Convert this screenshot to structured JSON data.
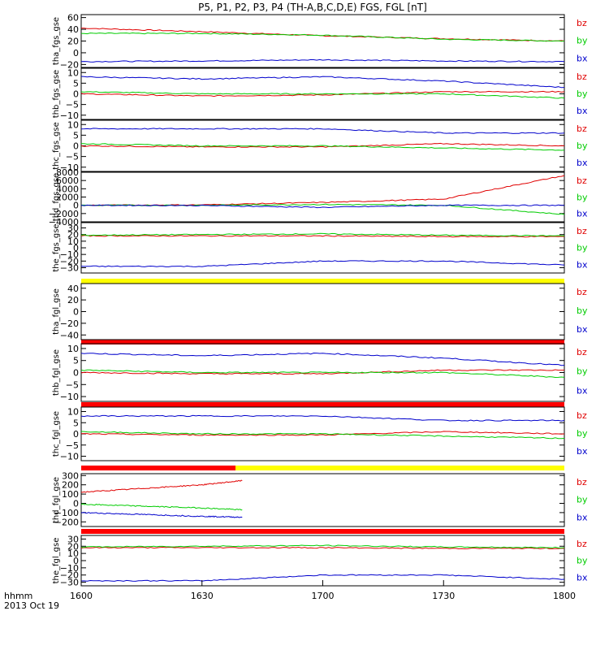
{
  "title": "P5, P1, P2, P3, P4 (TH-A,B,C,D,E) FGS, FGL [nT]",
  "footer": {
    "hhmm": "hhmm",
    "date": "2013 Oct 19"
  },
  "colors": {
    "bz": "#e00000",
    "by": "#00cc00",
    "bx": "#0000cc",
    "bar_red": "#ff0000",
    "bar_yellow": "#ffff00",
    "frame": "#000000"
  },
  "chart_data": [
    {
      "type": "line",
      "ylabel": "tha_fgs_gse",
      "xlim": [
        "1600",
        "1800"
      ],
      "ylim": [
        -25,
        65
      ],
      "yticks": [
        "60",
        "40",
        "20",
        "0",
        "−20"
      ],
      "x": [
        "1600",
        "1630",
        "1700",
        "1730",
        "1800"
      ],
      "series": [
        {
          "name": "bz",
          "values": [
            42,
            36,
            29,
            24,
            20
          ]
        },
        {
          "name": "by",
          "values": [
            33,
            33,
            30,
            23,
            20
          ]
        },
        {
          "name": "bx",
          "values": [
            -15,
            -14,
            -12,
            -14,
            -15
          ]
        }
      ]
    },
    {
      "type": "line",
      "ylabel": "thb_fgs_gse",
      "xlim": [
        "1600",
        "1800"
      ],
      "ylim": [
        -12,
        12
      ],
      "yticks": [
        "10",
        "5",
        "0",
        "−5",
        "−10"
      ],
      "x": [
        "1600",
        "1630",
        "1700",
        "1730",
        "1800"
      ],
      "series": [
        {
          "name": "bz",
          "values": [
            0,
            -1,
            -0.5,
            1,
            1
          ]
        },
        {
          "name": "by",
          "values": [
            1,
            0,
            0,
            0,
            -2
          ]
        },
        {
          "name": "bx",
          "values": [
            8,
            7,
            8,
            6,
            3
          ]
        }
      ]
    },
    {
      "type": "line",
      "ylabel": "thc_fgs_gse",
      "xlim": [
        "1600",
        "1800"
      ],
      "ylim": [
        -12,
        12
      ],
      "yticks": [
        "10",
        "5",
        "0",
        "−5",
        "−10"
      ],
      "x": [
        "1600",
        "1630",
        "1700",
        "1730",
        "1800"
      ],
      "series": [
        {
          "name": "bz",
          "values": [
            0,
            -0.5,
            -0.5,
            1,
            0
          ]
        },
        {
          "name": "by",
          "values": [
            1,
            0,
            0,
            -1,
            -2
          ]
        },
        {
          "name": "bx",
          "values": [
            8,
            8,
            8,
            6,
            6
          ]
        }
      ]
    },
    {
      "type": "line",
      "ylabel": "thd_fgs_gse",
      "xlim": [
        "1600",
        "1800"
      ],
      "ylim": [
        -4000,
        8000
      ],
      "yticks": [
        "8000",
        "6000",
        "4000",
        "2000",
        "0",
        "−2000",
        "−4000"
      ],
      "x": [
        "1600",
        "1630",
        "1700",
        "1730",
        "1800"
      ],
      "series": [
        {
          "name": "bz",
          "values": [
            0,
            100,
            700,
            1500,
            7200
          ]
        },
        {
          "name": "by",
          "values": [
            0,
            0,
            200,
            0,
            -2200
          ]
        },
        {
          "name": "bx",
          "values": [
            0,
            -50,
            -500,
            0,
            0
          ]
        }
      ]
    },
    {
      "type": "line",
      "ylabel": "the_fgs_gse",
      "xlim": [
        "1600",
        "1800"
      ],
      "ylim": [
        -38,
        38
      ],
      "yticks": [
        "30",
        "20",
        "10",
        "0",
        "−10",
        "−20",
        "−30"
      ],
      "x": [
        "1600",
        "1630",
        "1700",
        "1730",
        "1800"
      ],
      "series": [
        {
          "name": "bz",
          "values": [
            18,
            18,
            18,
            17,
            17
          ]
        },
        {
          "name": "by",
          "values": [
            19,
            20,
            21,
            19,
            18
          ]
        },
        {
          "name": "bx",
          "values": [
            -28,
            -28,
            -20,
            -20,
            -26
          ]
        }
      ]
    },
    {
      "type": "line",
      "ylabel": "tha_fgl_gse",
      "xlim": [
        "1600",
        "1800"
      ],
      "ylim": [
        -48,
        48
      ],
      "yticks": [
        "40",
        "20",
        "0",
        "−20",
        "−40"
      ],
      "x": [],
      "series": [
        {
          "name": "bz",
          "values": []
        },
        {
          "name": "by",
          "values": []
        },
        {
          "name": "bx",
          "values": []
        }
      ]
    },
    {
      "type": "line",
      "ylabel": "thb_fgl_gse",
      "xlim": [
        "1600",
        "1800"
      ],
      "ylim": [
        -12,
        12
      ],
      "yticks": [
        "10",
        "5",
        "0",
        "−5",
        "−10"
      ],
      "x": [
        "1600",
        "1630",
        "1700",
        "1730",
        "1800"
      ],
      "series": [
        {
          "name": "bz",
          "values": [
            0,
            -0.5,
            -0.5,
            1,
            1
          ]
        },
        {
          "name": "by",
          "values": [
            1,
            0,
            0,
            0,
            -2
          ]
        },
        {
          "name": "bx",
          "values": [
            8,
            7,
            8,
            6,
            3
          ]
        }
      ]
    },
    {
      "type": "line",
      "ylabel": "thc_fgl_gse",
      "xlim": [
        "1600",
        "1800"
      ],
      "ylim": [
        -12,
        12
      ],
      "yticks": [
        "10",
        "5",
        "0",
        "−5",
        "−10"
      ],
      "x": [
        "1600",
        "1630",
        "1700",
        "1730",
        "1800"
      ],
      "series": [
        {
          "name": "bz",
          "values": [
            0,
            -0.5,
            -0.5,
            1,
            0
          ]
        },
        {
          "name": "by",
          "values": [
            1,
            0,
            0,
            -1,
            -2
          ]
        },
        {
          "name": "bx",
          "values": [
            8,
            8,
            8,
            6,
            6
          ]
        }
      ]
    },
    {
      "type": "line",
      "ylabel": "thd_fgl_gse",
      "xlim": [
        "1600",
        "1800"
      ],
      "ylim": [
        -250,
        320
      ],
      "yticks": [
        "300",
        "200",
        "100",
        "0",
        "−100",
        "−200"
      ],
      "x": [
        "1600",
        "1615",
        "1630",
        "1640"
      ],
      "series": [
        {
          "name": "bz",
          "values": [
            120,
            160,
            200,
            245
          ]
        },
        {
          "name": "by",
          "values": [
            -10,
            -30,
            -50,
            -70
          ]
        },
        {
          "name": "bx",
          "values": [
            -100,
            -120,
            -140,
            -150
          ]
        }
      ]
    },
    {
      "type": "line",
      "ylabel": "the_fgl_gse",
      "xlim": [
        "1600",
        "1800"
      ],
      "ylim": [
        -35,
        35
      ],
      "yticks": [
        "30",
        "20",
        "10",
        "0",
        "−10",
        "−20",
        "−30"
      ],
      "x": [
        "1600",
        "1630",
        "1700",
        "1730",
        "1800"
      ],
      "series": [
        {
          "name": "bz",
          "values": [
            18,
            18,
            18,
            17,
            17
          ]
        },
        {
          "name": "by",
          "values": [
            19,
            20,
            21,
            19,
            18
          ]
        },
        {
          "name": "bx",
          "values": [
            -28,
            -28,
            -20,
            -20,
            -26
          ]
        }
      ]
    }
  ],
  "xaxis": {
    "ticks": [
      "1600",
      "1630",
      "1700",
      "1730",
      "1800"
    ]
  },
  "legend_labels": [
    "bz",
    "by",
    "bx"
  ]
}
